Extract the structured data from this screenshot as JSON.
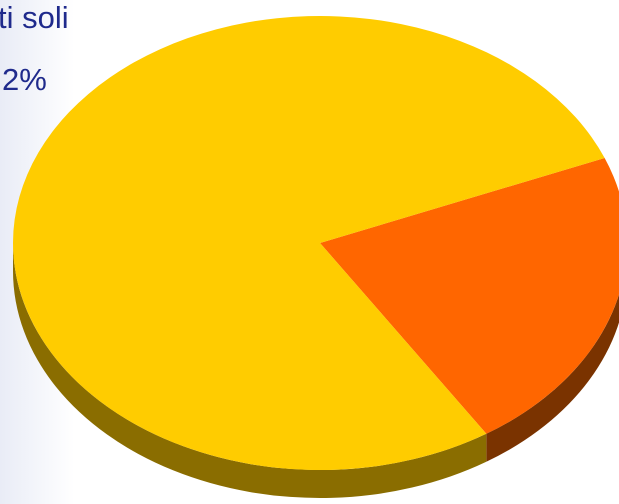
{
  "chart_data": {
    "type": "pie",
    "style": "3d",
    "labels": [
      "",
      ""
    ],
    "values": [
      78,
      22
    ],
    "colors": [
      "#ffcc00",
      "#ff6600"
    ],
    "side_colors": [
      "#8a6d00",
      "#7a3300"
    ],
    "grid": false,
    "legend": "none",
    "annotations": {
      "line1": "ti soli",
      "line2": "2%"
    }
  }
}
